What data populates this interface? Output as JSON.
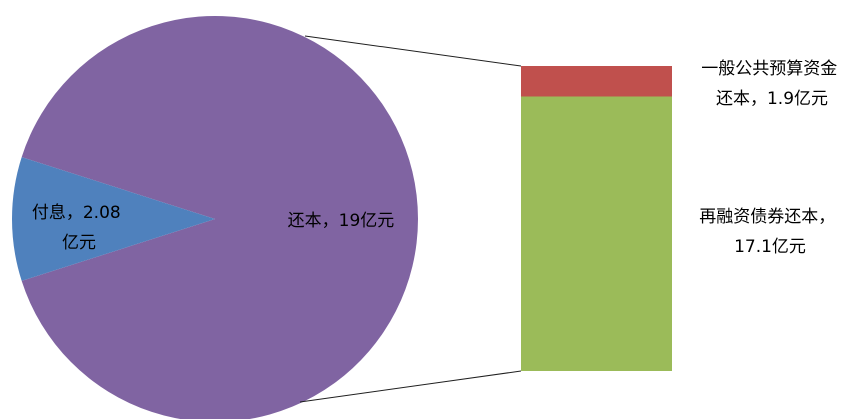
{
  "chart_data": {
    "type": "pie",
    "pie": {
      "slices": [
        {
          "label_lines": [
            "付息，2.08",
            "亿元"
          ],
          "value": 2.08,
          "color": "#4f81bd"
        },
        {
          "label_lines": [
            "还本，19亿元"
          ],
          "value": 19,
          "color": "#8064a2"
        }
      ]
    },
    "breakdown": {
      "of_slice": "还本，19亿元",
      "segments": [
        {
          "label_lines": [
            "再融资债券还本，",
            "17.1亿元"
          ],
          "value": 17.1,
          "color": "#9bbb59"
        },
        {
          "label_lines": [
            "一般公共预算资金",
            "还本，1.9亿元"
          ],
          "value": 1.9,
          "color": "#c0504d"
        }
      ]
    },
    "connector_color": "#1f1f1f"
  }
}
